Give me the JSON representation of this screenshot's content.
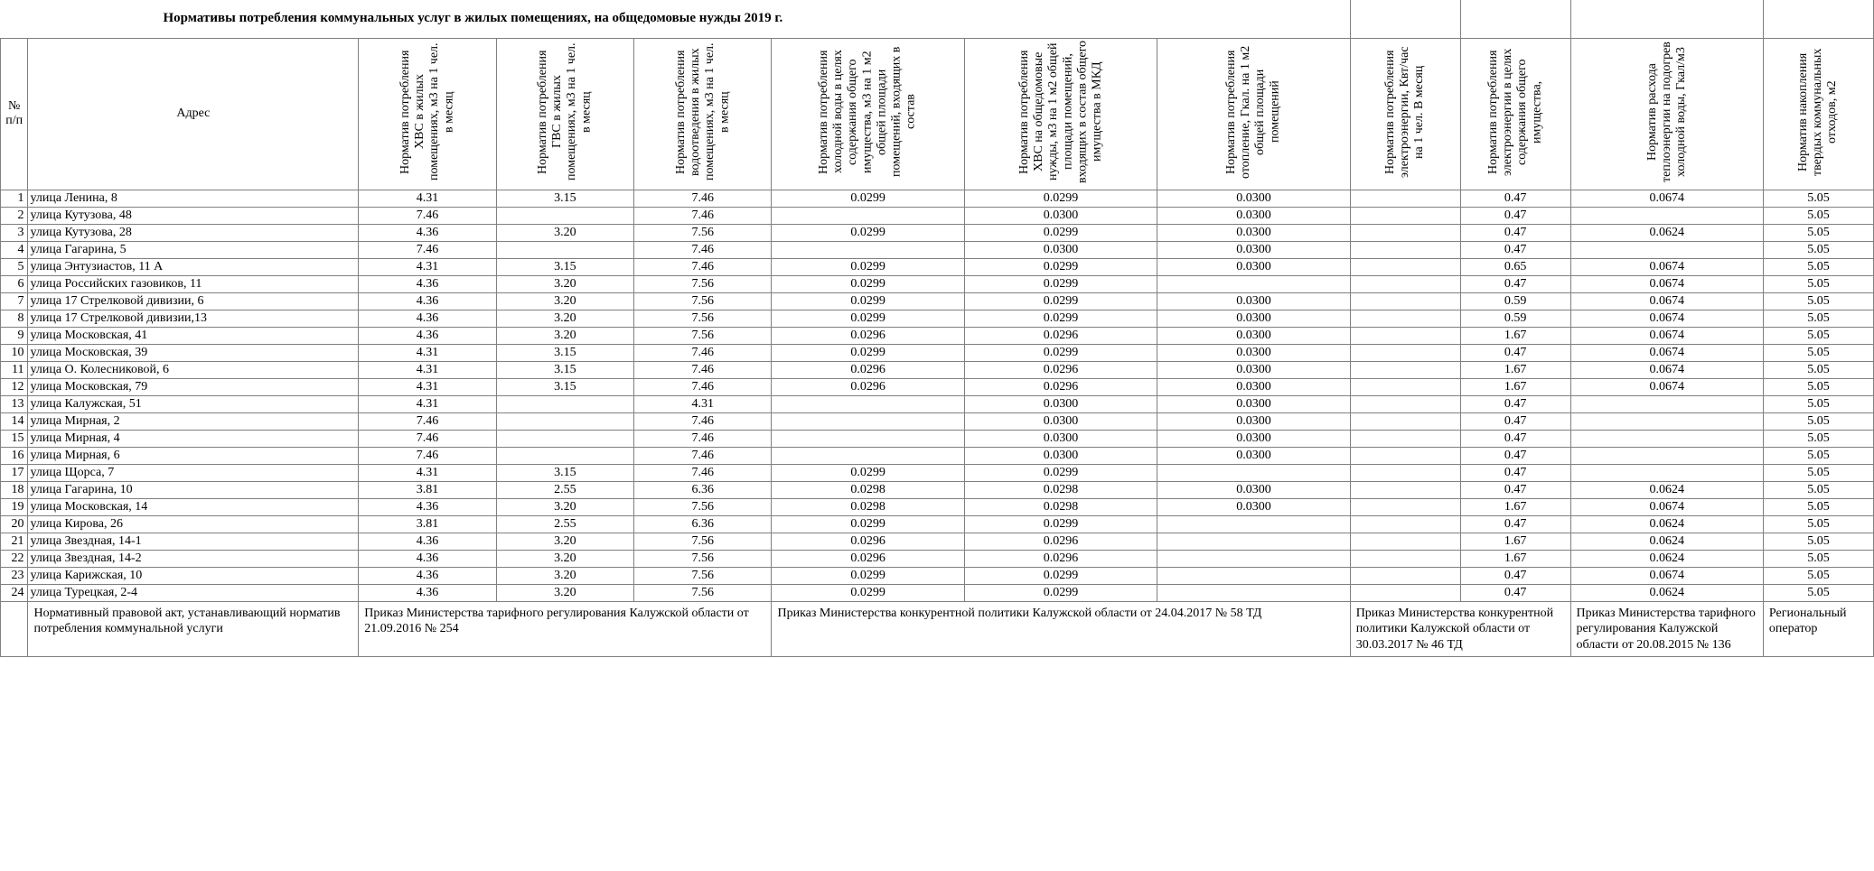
{
  "title": "Нормативы  потребления коммунальных услуг в жилых помещениях, на общедомовые нужды 2019 г.",
  "headers": {
    "row_no": "№ п/п",
    "address": "Адрес",
    "c1": "Норматив потребления ХВС в жилых помещениях, м3 на 1 чел. в месяц",
    "c2": "Норматив потребления ГВС в жилых помещениях, м3 на 1 чел. в месяц",
    "c3": "Норматив потребления водоотведения в жилых помещениях, м3 на 1 чел. в месяц",
    "c4": "Норматив потребления холодной воды в целях содержания общего имущества, м3 на 1 м2 общей площади помещений, входящих в состав",
    "c5": "Норматив потребления ХВС на общедомовые нужды, м3 на 1 м2 общей площади помещений, входящих в состав общего имущества в МКД",
    "c6": "Норматив потребления отопление, Гкал. на 1 м2 общей площади помещений",
    "c7": "Норматив потребления электроэнергии, Квт/час на 1 чел. В месяц",
    "c8": "Норматив потребления электроэнергии в целях содержания общего имущества,",
    "c9": "Норматив расхода теплоэнергии на подогрев холодной воды, Гкал/м3",
    "c10": "Норматив накопления твердых коммунальных отходов, м2"
  },
  "rows": [
    {
      "n": "1",
      "addr": "улица Ленина, 8",
      "v": [
        "4.31",
        "3.15",
        "7.46",
        "0.0299",
        "0.0299",
        "0.0300",
        "",
        "0.47",
        "0.0674",
        "5.05"
      ]
    },
    {
      "n": "2",
      "addr": "улица Кутузова, 48",
      "v": [
        "7.46",
        "",
        "7.46",
        "",
        "0.0300",
        "0.0300",
        "",
        "0.47",
        "",
        "5.05"
      ]
    },
    {
      "n": "3",
      "addr": "улица Кутузова, 28",
      "v": [
        "4.36",
        "3.20",
        "7.56",
        "0.0299",
        "0.0299",
        "0.0300",
        "",
        "0.47",
        "0.0624",
        "5.05"
      ]
    },
    {
      "n": "4",
      "addr": "улица Гагарина, 5",
      "v": [
        "7.46",
        "",
        "7.46",
        "",
        "0.0300",
        "0.0300",
        "",
        "0.47",
        "",
        "5.05"
      ]
    },
    {
      "n": "5",
      "addr": "улица Энтузиастов, 11 А",
      "v": [
        "4.31",
        "3.15",
        "7.46",
        "0.0299",
        "0.0299",
        "0.0300",
        "",
        "0.65",
        "0.0674",
        "5.05"
      ]
    },
    {
      "n": "6",
      "addr": "улица Российских газовиков, 11",
      "v": [
        "4.36",
        "3.20",
        "7.56",
        "0.0299",
        "0.0299",
        "",
        "",
        "0.47",
        "0.0674",
        "5.05"
      ]
    },
    {
      "n": "7",
      "addr": "улица 17 Стрелковой дивизии, 6",
      "v": [
        "4.36",
        "3.20",
        "7.56",
        "0.0299",
        "0.0299",
        "0.0300",
        "",
        "0.59",
        "0.0674",
        "5.05"
      ]
    },
    {
      "n": "8",
      "addr": "улица 17 Стрелковой дивизии,13",
      "v": [
        "4.36",
        "3.20",
        "7.56",
        "0.0299",
        "0.0299",
        "0.0300",
        "",
        "0.59",
        "0.0674",
        "5.05"
      ]
    },
    {
      "n": "9",
      "addr": "улица Московская, 41",
      "v": [
        "4.36",
        "3.20",
        "7.56",
        "0.0296",
        "0.0296",
        "0.0300",
        "",
        "1.67",
        "0.0674",
        "5.05"
      ]
    },
    {
      "n": "10",
      "addr": "улица Московская, 39",
      "v": [
        "4.31",
        "3.15",
        "7.46",
        "0.0299",
        "0.0299",
        "0.0300",
        "",
        "0.47",
        "0.0674",
        "5.05"
      ]
    },
    {
      "n": "11",
      "addr": "улица О. Колесниковой, 6",
      "v": [
        "4.31",
        "3.15",
        "7.46",
        "0.0296",
        "0.0296",
        "0.0300",
        "",
        "1.67",
        "0.0674",
        "5.05"
      ]
    },
    {
      "n": "12",
      "addr": "улица Московская, 79",
      "v": [
        "4.31",
        "3.15",
        "7.46",
        "0.0296",
        "0.0296",
        "0.0300",
        "",
        "1.67",
        "0.0674",
        "5.05"
      ]
    },
    {
      "n": "13",
      "addr": "улица Калужская, 51",
      "v": [
        "4.31",
        "",
        "4.31",
        "",
        "0.0300",
        "0.0300",
        "",
        "0.47",
        "",
        "5.05"
      ]
    },
    {
      "n": "14",
      "addr": "улица Мирная, 2",
      "v": [
        "7.46",
        "",
        "7.46",
        "",
        "0.0300",
        "0.0300",
        "",
        "0.47",
        "",
        "5.05"
      ]
    },
    {
      "n": "15",
      "addr": "улица Мирная, 4",
      "v": [
        "7.46",
        "",
        "7.46",
        "",
        "0.0300",
        "0.0300",
        "",
        "0.47",
        "",
        "5.05"
      ]
    },
    {
      "n": "16",
      "addr": "улица Мирная, 6",
      "v": [
        "7.46",
        "",
        "7.46",
        "",
        "0.0300",
        "0.0300",
        "",
        "0.47",
        "",
        "5.05"
      ]
    },
    {
      "n": "17",
      "addr": "улица Щорса, 7",
      "v": [
        "4.31",
        "3.15",
        "7.46",
        "0.0299",
        "0.0299",
        "",
        "",
        "0.47",
        "",
        "5.05"
      ]
    },
    {
      "n": "18",
      "addr": "улица Гагарина, 10",
      "v": [
        "3.81",
        "2.55",
        "6.36",
        "0.0298",
        "0.0298",
        "0.0300",
        "",
        "0.47",
        "0.0624",
        "5.05"
      ]
    },
    {
      "n": "19",
      "addr": "улица Московская, 14",
      "v": [
        "4.36",
        "3.20",
        "7.56",
        "0.0298",
        "0.0298",
        "0.0300",
        "",
        "1.67",
        "0.0674",
        "5.05"
      ]
    },
    {
      "n": "20",
      "addr": "улица Кирова, 26",
      "v": [
        "3.81",
        "2.55",
        "6.36",
        "0.0299",
        "0.0299",
        "",
        "",
        "0.47",
        "0.0624",
        "5.05"
      ]
    },
    {
      "n": "21",
      "addr": "улица Звездная, 14-1",
      "v": [
        "4.36",
        "3.20",
        "7.56",
        "0.0296",
        "0.0296",
        "",
        "",
        "1.67",
        "0.0624",
        "5.05"
      ]
    },
    {
      "n": "22",
      "addr": "улица Звездная, 14-2",
      "v": [
        "4.36",
        "3.20",
        "7.56",
        "0.0296",
        "0.0296",
        "",
        "",
        "1.67",
        "0.0624",
        "5.05"
      ]
    },
    {
      "n": "23",
      "addr": "улица Карижская, 10",
      "v": [
        "4.36",
        "3.20",
        "7.56",
        "0.0299",
        "0.0299",
        "",
        "",
        "0.47",
        "0.0674",
        "5.05"
      ]
    },
    {
      "n": "24",
      "addr": "улица Турецкая, 2-4",
      "v": [
        "4.36",
        "3.20",
        "7.56",
        "0.0299",
        "0.0299",
        "",
        "",
        "0.47",
        "0.0624",
        "5.05"
      ]
    }
  ],
  "footer": {
    "label": "Нормативный правовой акт, устанавливающий норматив потребления коммунальной услуги",
    "f1": "Приказ Министерства тарифного регулирования Калужской области от 21.09.2016 № 254",
    "f2": "Приказ Министерства конкурентной политики Калужской области от 24.04.2017 № 58 ТД",
    "f3": "Приказ Министерства конкурентной политики Калужской области от 30.03.2017 № 46 ТД",
    "f4": "Приказ Министерства тарифного регулирования Калужской области от 20.08.2015 № 136",
    "f5": "Региональный оператор"
  },
  "style": {
    "border_color": "#808080",
    "font_family": "Times New Roman",
    "title_fontsize": 15,
    "body_fontsize": 14,
    "background": "#ffffff"
  }
}
